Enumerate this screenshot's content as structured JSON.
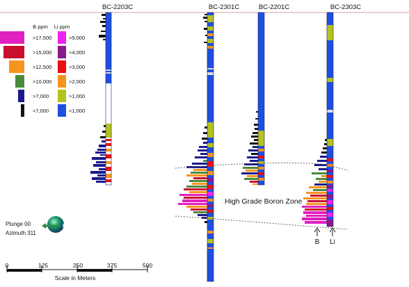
{
  "holes": [
    {
      "name": "BC-2203C"
    },
    {
      "name": "BC-2301C"
    },
    {
      "name": "BC-2201C"
    },
    {
      "name": "BC-2303C"
    }
  ],
  "legend_b": {
    "title": "B ppm",
    "items": [
      {
        "label": ">17,500",
        "color": "#e020c0"
      },
      {
        "label": ">15,000",
        "color": "#c8102e"
      },
      {
        "label": ">12,500",
        "color": "#f7941d"
      },
      {
        "label": ">10,000",
        "color": "#4a8a3c"
      },
      {
        "label": ">7,000",
        "color": "#1a1a8c"
      },
      {
        "label": "<7,000",
        "color": "#111111"
      }
    ]
  },
  "legend_li": {
    "title": "Li ppm",
    "items": [
      {
        "label": ">5,000",
        "color": "#ee22ee"
      },
      {
        "label": ">4,000",
        "color": "#8a1a8a"
      },
      {
        "label": ">3,000",
        "color": "#e81010"
      },
      {
        "label": ">2,000",
        "color": "#f7941d"
      },
      {
        "label": ">1,000",
        "color": "#b5c21a"
      },
      {
        "label": "<1,000",
        "color": "#1e50e0"
      }
    ]
  },
  "zone_label": "High Grade Boron Zone",
  "plunge": "Plunge 00",
  "azimuth": "Azimuth 311",
  "compass_letter": "E",
  "marker_b": "B",
  "marker_li": "Li",
  "scale": {
    "ticks": [
      "0",
      "125",
      "250",
      "375",
      "500"
    ],
    "label": "Scale in Meters"
  }
}
